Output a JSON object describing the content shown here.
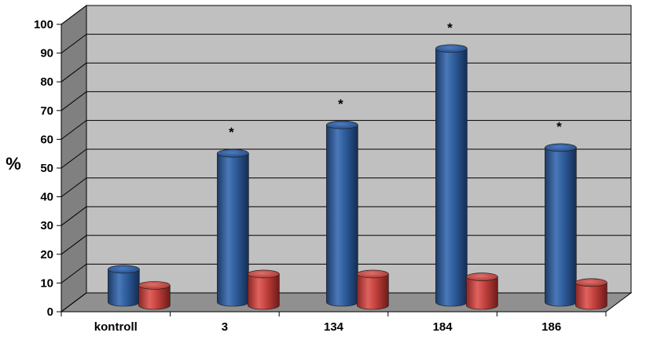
{
  "chart_data": {
    "type": "bar",
    "style": "3d-cylinder",
    "ylabel": "%",
    "ylim": [
      0,
      100
    ],
    "yticks": [
      0,
      10,
      20,
      30,
      40,
      50,
      60,
      70,
      80,
      90,
      100
    ],
    "grid": true,
    "categories": [
      "kontroll",
      "3",
      "134",
      "184",
      "186"
    ],
    "series": [
      {
        "color": "#2E5C9A",
        "values": [
          10,
          51,
          61,
          88,
          53
        ]
      },
      {
        "color": "#C0403C",
        "values": [
          6,
          10,
          10,
          9,
          7
        ]
      }
    ],
    "annotations": [
      "",
      "*",
      "*",
      "*",
      "*"
    ],
    "colors": {
      "wall": "#C0C0C0",
      "floor": "#909090",
      "side_wall": "#808080"
    }
  }
}
